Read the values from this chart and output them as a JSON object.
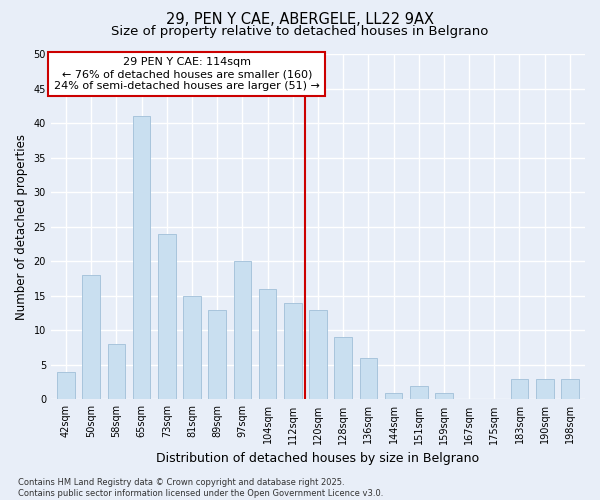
{
  "title": "29, PEN Y CAE, ABERGELE, LL22 9AX",
  "subtitle": "Size of property relative to detached houses in Belgrano",
  "xlabel": "Distribution of detached houses by size in Belgrano",
  "ylabel": "Number of detached properties",
  "categories": [
    "42sqm",
    "50sqm",
    "58sqm",
    "65sqm",
    "73sqm",
    "81sqm",
    "89sqm",
    "97sqm",
    "104sqm",
    "112sqm",
    "120sqm",
    "128sqm",
    "136sqm",
    "144sqm",
    "151sqm",
    "159sqm",
    "167sqm",
    "175sqm",
    "183sqm",
    "190sqm",
    "198sqm"
  ],
  "values": [
    4,
    18,
    8,
    41,
    24,
    15,
    13,
    20,
    16,
    14,
    13,
    9,
    6,
    1,
    2,
    1,
    0,
    0,
    3,
    3,
    3
  ],
  "bar_color": "#c9dff0",
  "bar_edge_color": "#a0bfd8",
  "bar_edge_width": 0.6,
  "vline_x_index": 9.5,
  "vline_color": "#cc0000",
  "annotation_line1": "29 PEN Y CAE: 114sqm",
  "annotation_line2": "← 76% of detached houses are smaller (160)",
  "annotation_line3": "24% of semi-detached houses are larger (51) →",
  "annotation_box_color": "#ffffff",
  "annotation_box_edge": "#cc0000",
  "ylim": [
    0,
    50
  ],
  "yticks": [
    0,
    5,
    10,
    15,
    20,
    25,
    30,
    35,
    40,
    45,
    50
  ],
  "background_color": "#e8eef8",
  "grid_color": "#ffffff",
  "footer": "Contains HM Land Registry data © Crown copyright and database right 2025.\nContains public sector information licensed under the Open Government Licence v3.0.",
  "title_fontsize": 10.5,
  "subtitle_fontsize": 9.5,
  "xlabel_fontsize": 9,
  "ylabel_fontsize": 8.5,
  "tick_fontsize": 7,
  "annotation_fontsize": 8,
  "footer_fontsize": 6
}
